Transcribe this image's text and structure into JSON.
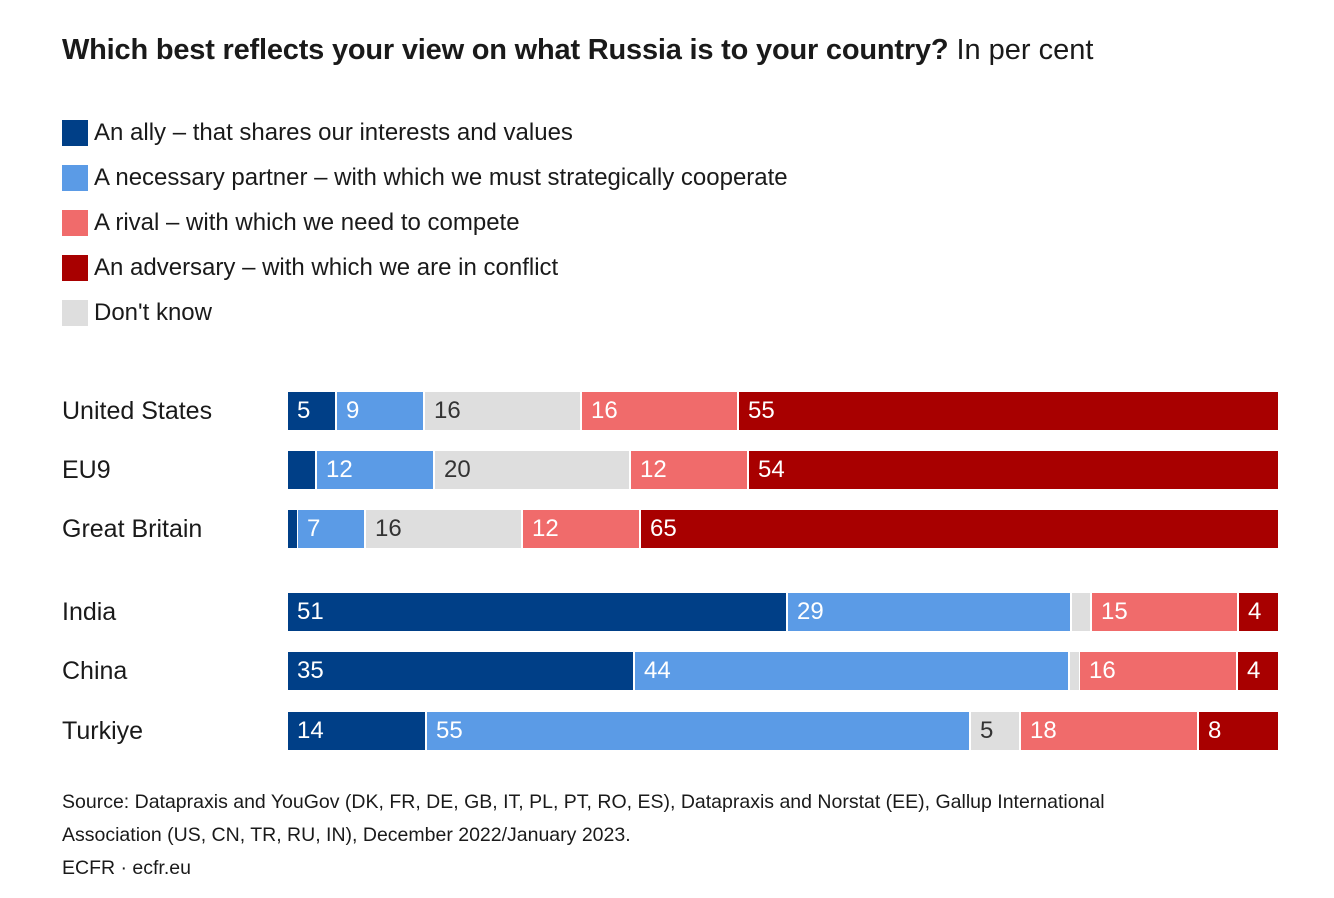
{
  "title": {
    "main": "Which best reflects your view on what Russia is to your country?",
    "sub": "In per cent"
  },
  "chart_data": {
    "type": "bar",
    "orientation": "horizontal",
    "stacked": true,
    "categories": [
      "United States",
      "EU9",
      "Great Britain",
      "India",
      "China",
      "Turkiye"
    ],
    "series": [
      {
        "name": "An ally – that shares our interests and values",
        "key": "ally",
        "color": "#003f87",
        "text_color": "#ffffff",
        "values": [
          5,
          3,
          1,
          51,
          35,
          14
        ],
        "labels": [
          "5",
          "",
          "",
          "51",
          "35",
          "14"
        ]
      },
      {
        "name": "A necessary partner – with which we must strategically cooperate",
        "key": "partner",
        "color": "#5b9be6",
        "text_color": "#ffffff",
        "values": [
          9,
          12,
          7,
          29,
          44,
          55
        ],
        "labels": [
          "9",
          "12",
          "7",
          "29",
          "44",
          "55"
        ]
      },
      {
        "name": "Don't know",
        "key": "dontknow",
        "color": "#dedede",
        "text_color": "#333333",
        "values": [
          16,
          20,
          16,
          2,
          1,
          5
        ],
        "labels": [
          "16",
          "20",
          "16",
          "",
          "",
          "5"
        ]
      },
      {
        "name": "A rival – with which we need to compete",
        "key": "rival",
        "color": "#f06b6b",
        "text_color": "#ffffff",
        "values": [
          16,
          12,
          12,
          15,
          16,
          18
        ],
        "labels": [
          "16",
          "12",
          "12",
          "15",
          "16",
          "18"
        ]
      },
      {
        "name": "An adversary – with which we are in conflict",
        "key": "adversary",
        "color": "#a80000",
        "text_color": "#ffffff",
        "values": [
          55,
          54,
          65,
          4,
          4,
          8
        ],
        "labels": [
          "55",
          "54",
          "65",
          "4",
          "4",
          "8"
        ]
      }
    ],
    "legend_order": [
      "ally",
      "partner",
      "rival",
      "adversary",
      "dontknow"
    ],
    "xlim": [
      0,
      100
    ]
  },
  "source": {
    "line1": "Source: Datapraxis and YouGov (DK, FR, DE, GB, IT, PL, PT, RO, ES), Datapraxis and Norstat (EE), Gallup International",
    "line2": "Association (US, CN, TR, RU, IN), December 2022/January 2023.",
    "credit": "ECFR · ecfr.eu"
  }
}
